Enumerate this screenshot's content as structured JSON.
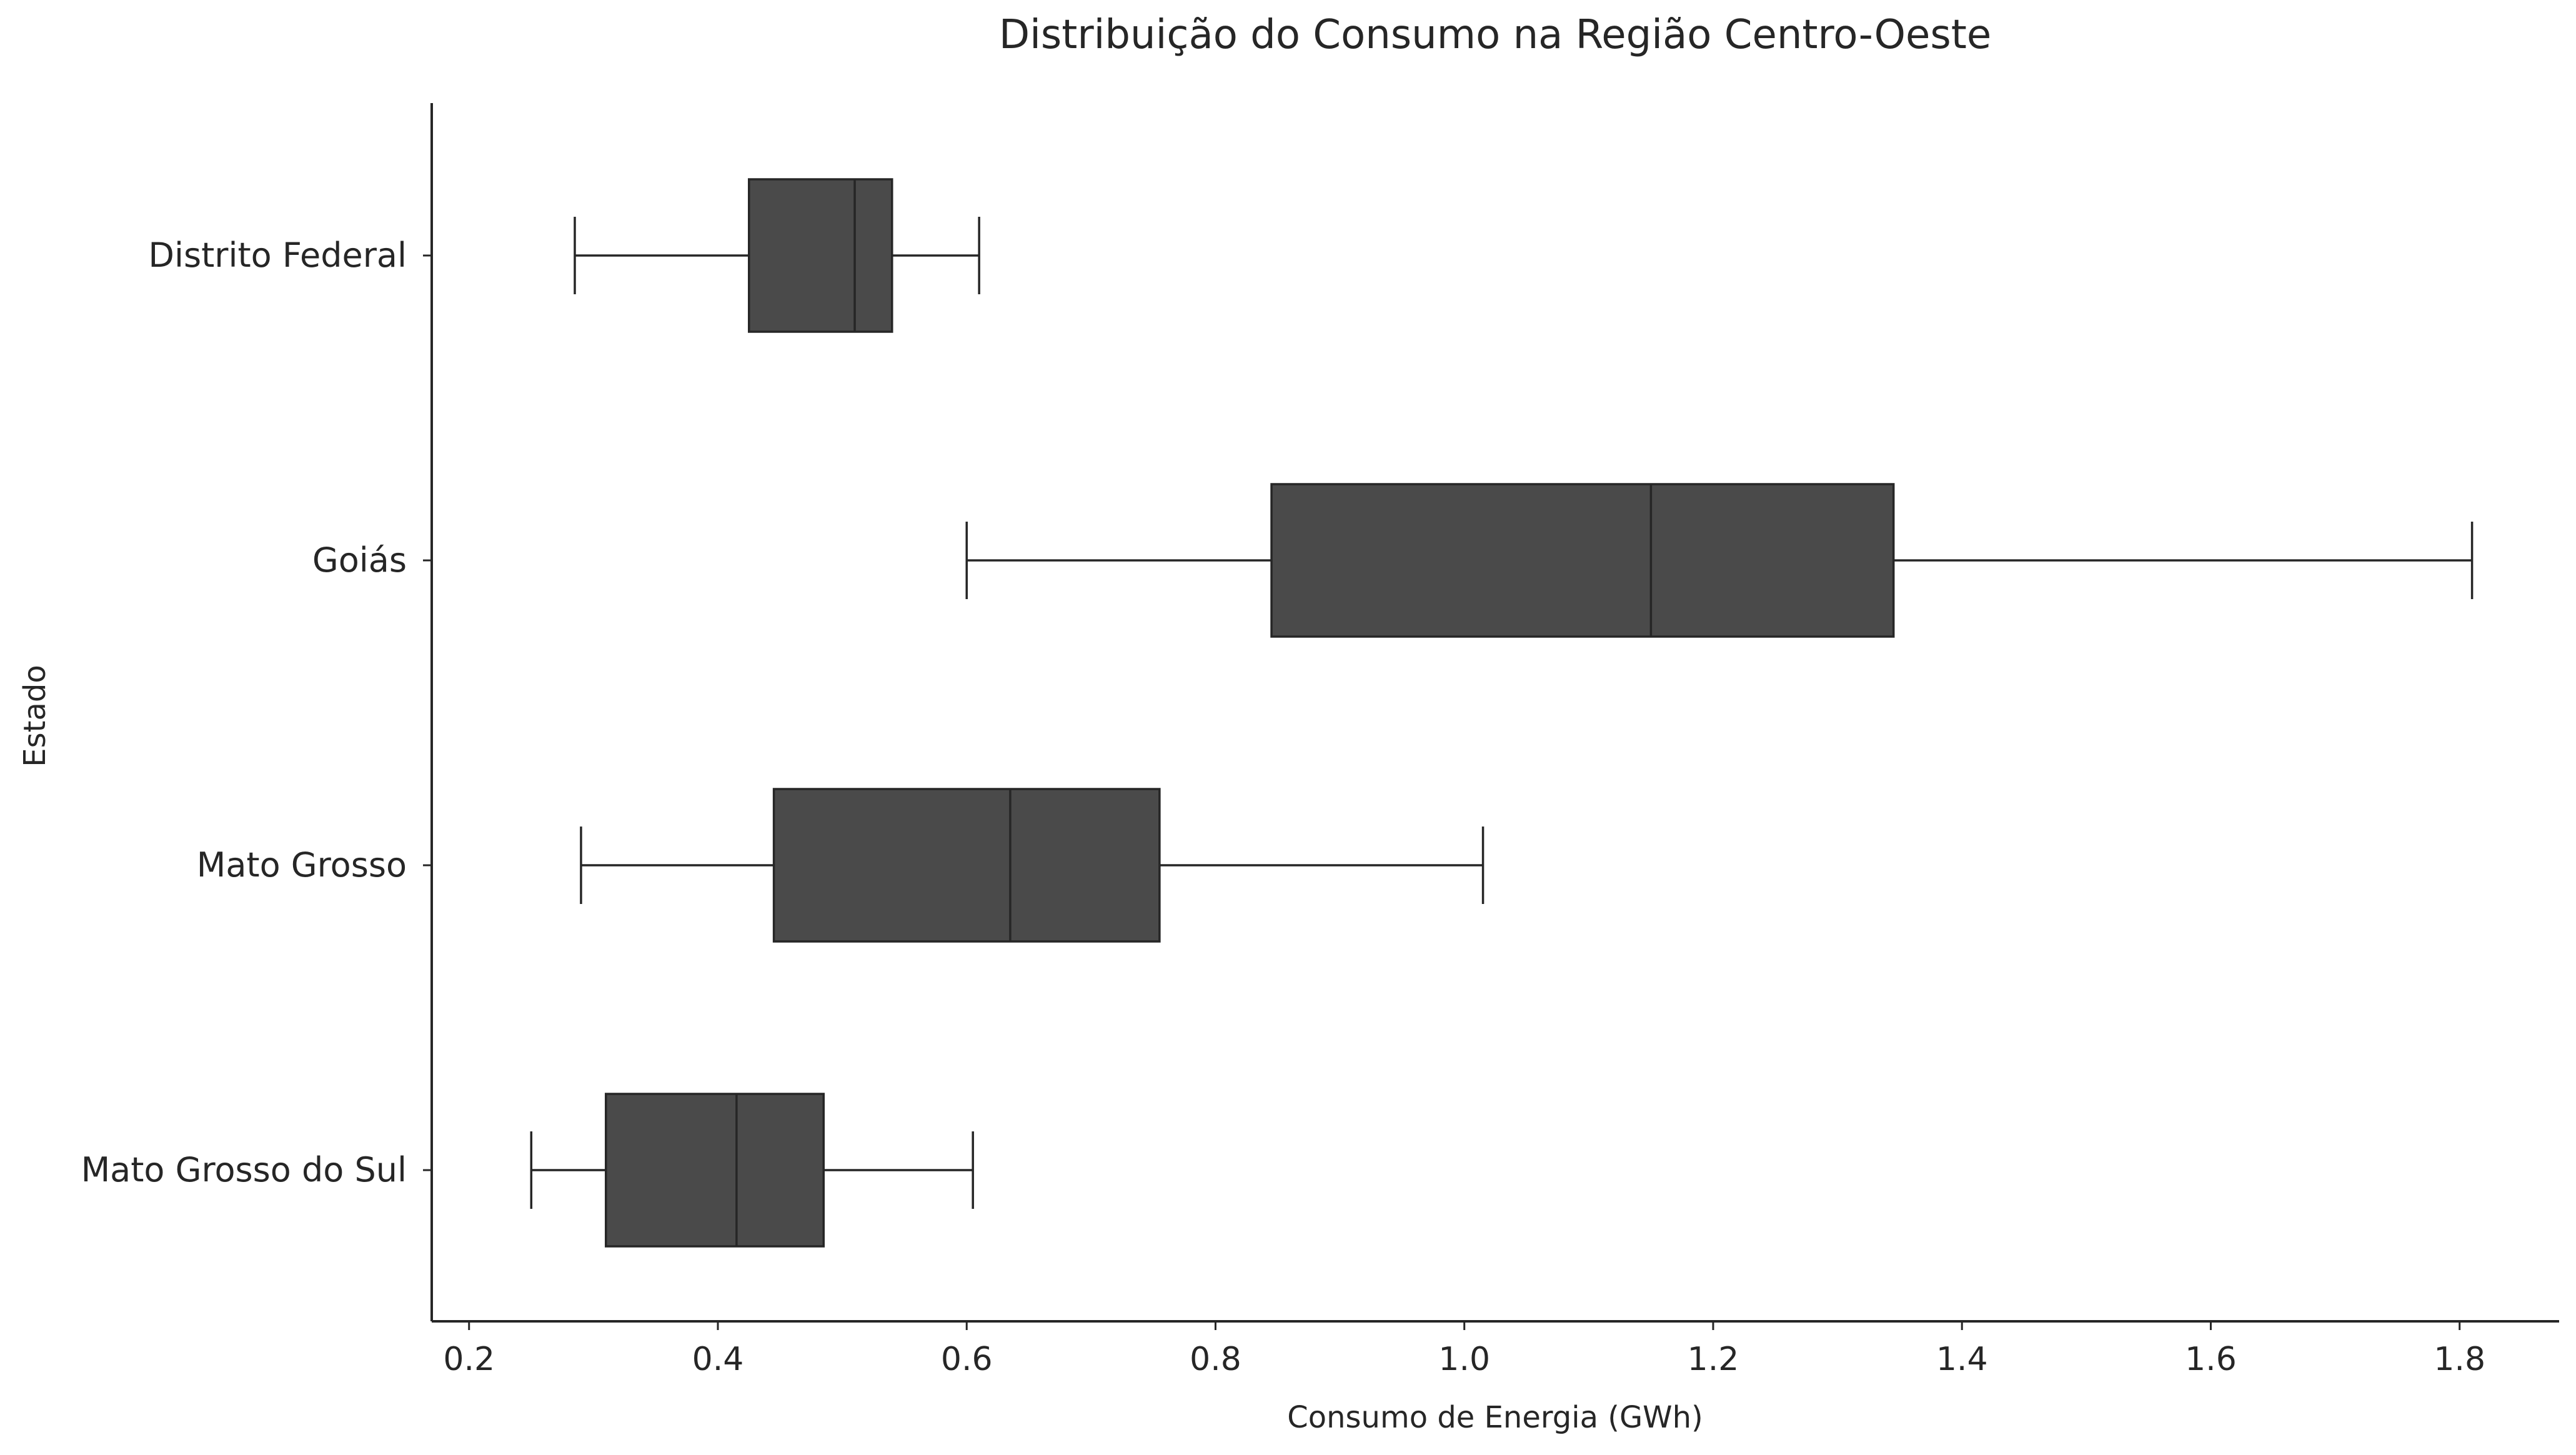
{
  "chart_data": {
    "type": "boxplot",
    "orientation": "horizontal",
    "title": "Distribuição do Consumo na Região Centro-Oeste",
    "xlabel": "Consumo de Energia (GWh)",
    "ylabel": "Estado",
    "xlim": [
      0.17,
      1.88
    ],
    "xticks": [
      0.2,
      0.4,
      0.6,
      0.8,
      1.0,
      1.2,
      1.4,
      1.6,
      1.8
    ],
    "xtick_labels": [
      "0.2",
      "0.4",
      "0.6",
      "0.8",
      "1.0",
      "1.2",
      "1.4",
      "1.6",
      "1.8"
    ],
    "grid": false,
    "box_color": "#4a4a4a",
    "line_color": "#262626",
    "categories": [
      "Distrito Federal",
      "Goiás",
      "Mato Grosso",
      "Mato Grosso do Sul"
    ],
    "series": [
      {
        "category": "Distrito Federal",
        "whisker_low": 0.285,
        "q1": 0.425,
        "median": 0.51,
        "q3": 0.54,
        "whisker_high": 0.61
      },
      {
        "category": "Goiás",
        "whisker_low": 0.6,
        "q1": 0.845,
        "median": 1.15,
        "q3": 1.345,
        "whisker_high": 1.81
      },
      {
        "category": "Mato Grosso",
        "whisker_low": 0.29,
        "q1": 0.445,
        "median": 0.635,
        "q3": 0.755,
        "whisker_high": 1.015
      },
      {
        "category": "Mato Grosso do Sul",
        "whisker_low": 0.25,
        "q1": 0.31,
        "median": 0.415,
        "q3": 0.485,
        "whisker_high": 0.605
      }
    ]
  }
}
